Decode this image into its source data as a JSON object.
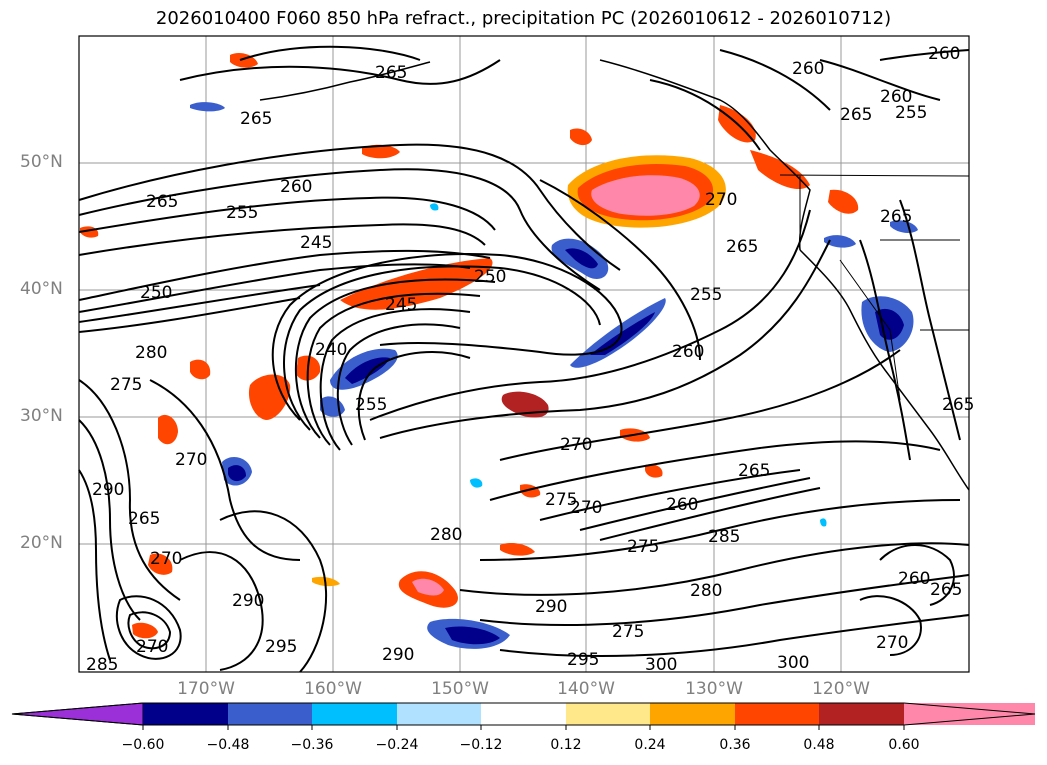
{
  "title": "2026010400 F060 850 hPa refract., precipitation PC (2026010612 - 2026010712)",
  "lat_labels": [
    "50°N",
    "40°N",
    "30°N",
    "20°N"
  ],
  "lon_labels": [
    "170°W",
    "160°W",
    "150°W",
    "140°W",
    "130°W",
    "120°W"
  ],
  "contour_labels": [
    "260",
    "260",
    "265",
    "260",
    "255",
    "265",
    "265",
    "260",
    "255",
    "245",
    "250",
    "250",
    "270",
    "265",
    "255",
    "260",
    "240",
    "245",
    "255",
    "280",
    "275",
    "270",
    "270",
    "275",
    "270",
    "280",
    "260",
    "265",
    "275",
    "285",
    "290",
    "280",
    "275",
    "290",
    "295",
    "300",
    "300",
    "285",
    "290",
    "270",
    "290",
    "270",
    "295",
    "265",
    "260",
    "265",
    "270",
    "265",
    "265",
    "265"
  ],
  "colorbar": {
    "ticks": [
      "−0.60",
      "−0.48",
      "−0.36",
      "−0.24",
      "−0.12",
      "0.12",
      "0.24",
      "0.36",
      "0.48",
      "0.60"
    ],
    "colors": [
      "#9b30d9",
      "#00008b",
      "#3a5fcd",
      "#00bfff",
      "#b0e2ff",
      "#ffffff",
      "#ffe88a",
      "#ffa500",
      "#ff4500",
      "#b22222",
      "#ff88aa"
    ]
  }
}
